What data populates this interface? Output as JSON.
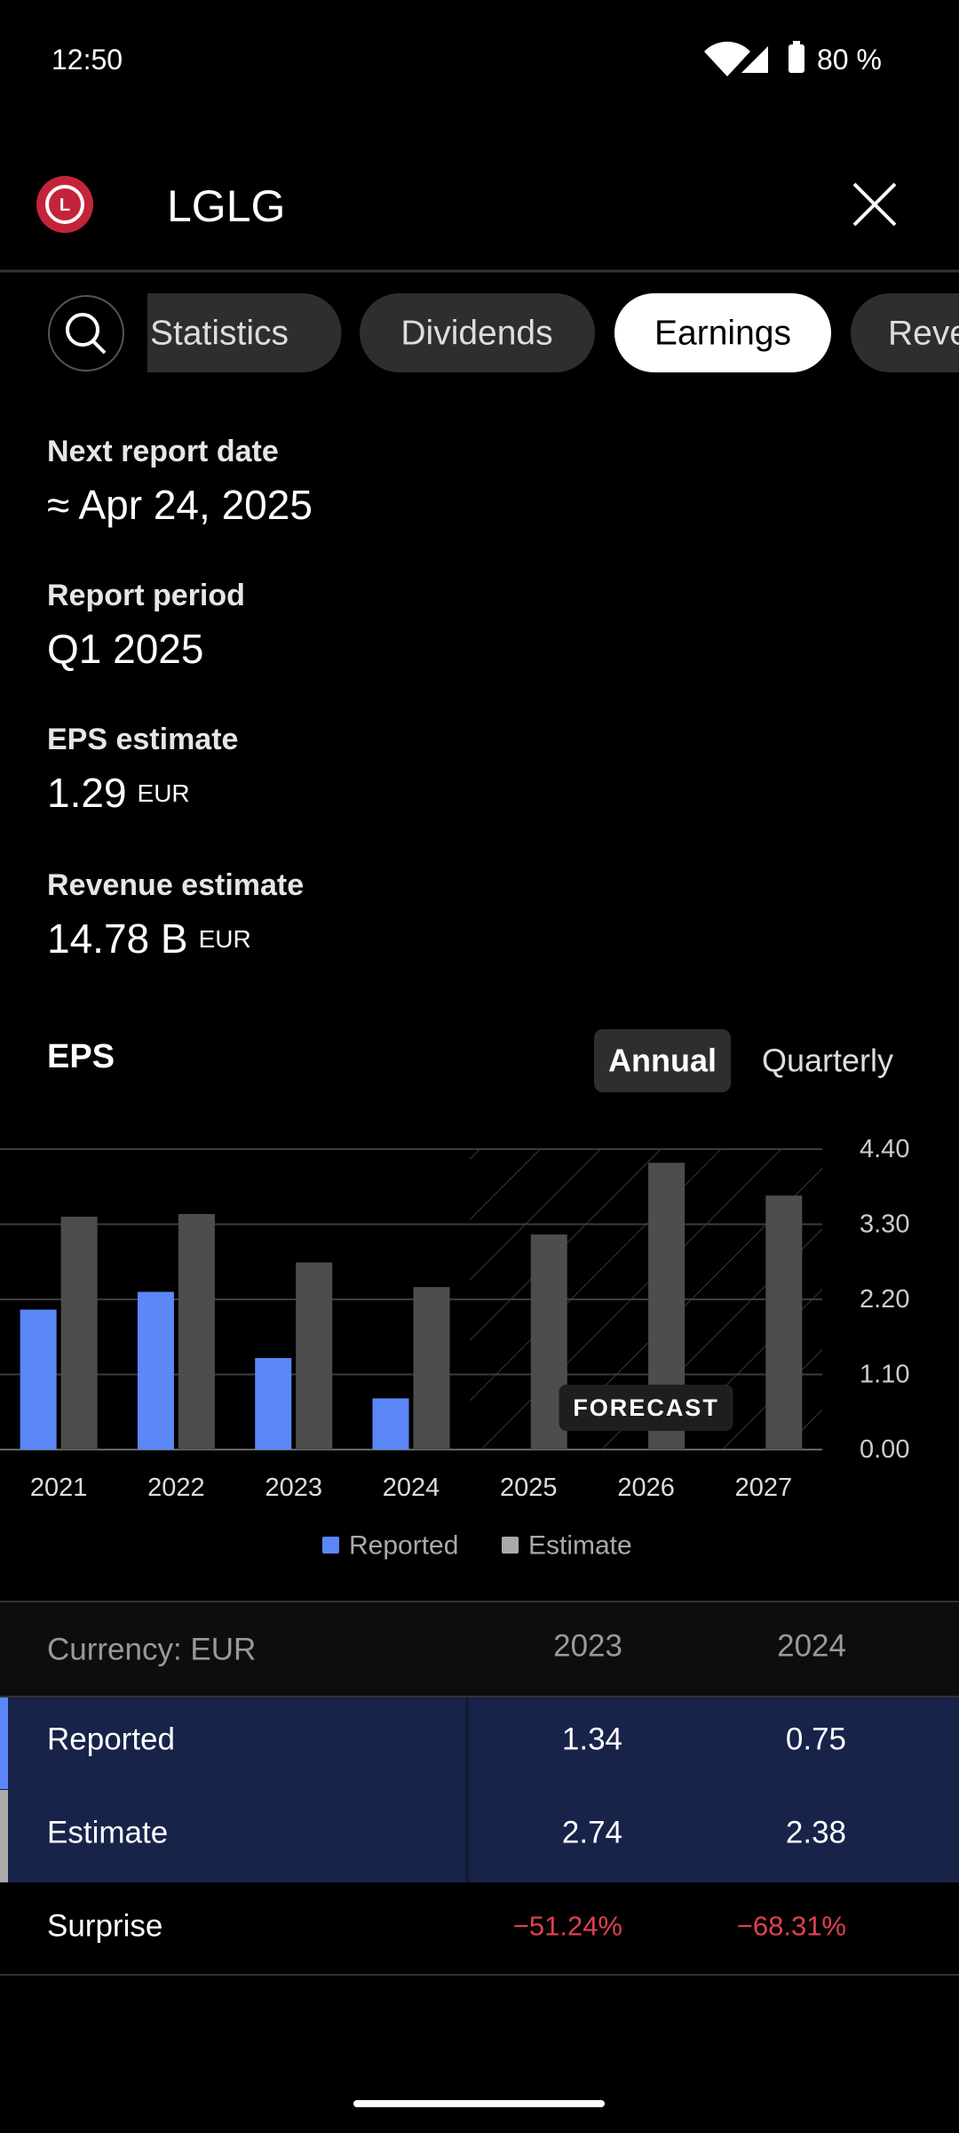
{
  "status_bar": {
    "time": "12:50",
    "battery": "80 %"
  },
  "header": {
    "title": "LGLG"
  },
  "tabs": [
    "Statistics",
    "Dividends",
    "Earnings",
    "Revenue"
  ],
  "report": {
    "next_date": {
      "label": "Next report date",
      "value": "≈ Apr 24, 2025"
    },
    "period": {
      "label": "Report period",
      "value": "Q1 2025"
    },
    "eps_estimate": {
      "label": "EPS estimate",
      "value": "1.29",
      "unit": "EUR"
    },
    "revenue_estimate": {
      "label": "Revenue estimate",
      "value": "14.78 B",
      "unit": "EUR"
    }
  },
  "toggle": [
    "Annual",
    "Quarterly"
  ],
  "chart_data": {
    "type": "bar",
    "title": "EPS",
    "categories": [
      "2021",
      "2022",
      "2023",
      "2024",
      "2025",
      "2026",
      "2027"
    ],
    "series": [
      {
        "name": "Reported",
        "color": "#5b87f7",
        "values": [
          2.05,
          2.31,
          1.34,
          0.75,
          null,
          null,
          null
        ]
      },
      {
        "name": "Estimate",
        "color": "#4d4d4d",
        "values": [
          3.41,
          3.45,
          2.74,
          2.38,
          3.15,
          4.2,
          3.72
        ]
      }
    ],
    "ylim": [
      0,
      4.4
    ],
    "yticks": [
      {
        "value": 0,
        "label": "0.00"
      },
      {
        "value": 1.1,
        "label": "1.10"
      },
      {
        "value": 2.2,
        "label": "2.20"
      },
      {
        "value": 3.3,
        "label": "3.30"
      },
      {
        "value": 4.4,
        "label": "4.40"
      }
    ],
    "grid": true,
    "annotation": "FORECAST"
  },
  "table": {
    "header": [
      "Currency: EUR",
      "2023",
      "2024"
    ],
    "rows": [
      [
        "Reported",
        "1.34",
        "0.75"
      ],
      [
        "Estimate",
        "2.74",
        "2.38"
      ],
      [
        "Surprise",
        "−51.24%",
        "−68.31%"
      ]
    ]
  }
}
